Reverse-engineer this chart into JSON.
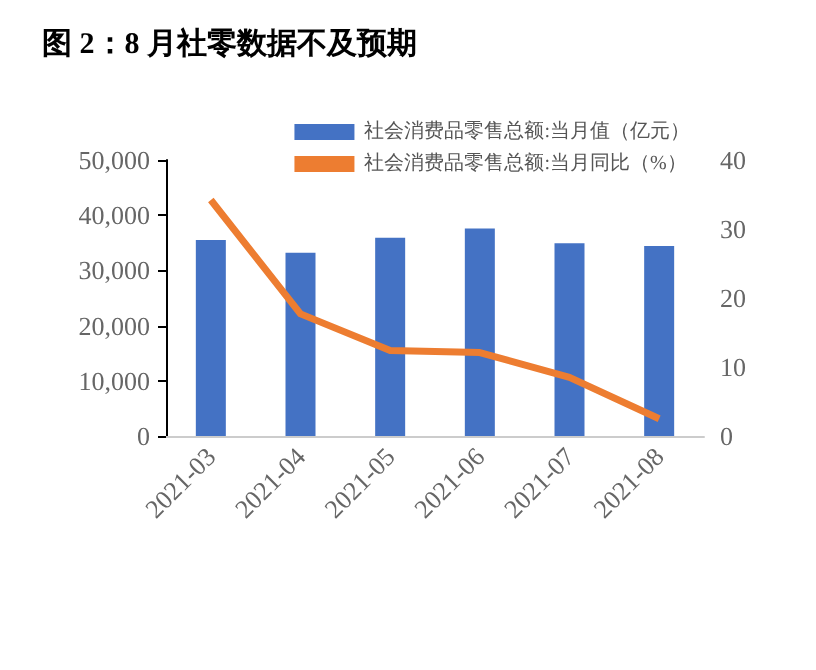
{
  "chart_data": {
    "type": "bar",
    "title": "图 2：8 月社零数据不及预期",
    "categories": [
      "2021-03",
      "2021-04",
      "2021-05",
      "2021-06",
      "2021-07",
      "2021-08"
    ],
    "series": [
      {
        "name": "社会消费品零售总额:当月值（亿元）",
        "color": "#4472c4",
        "values": [
          35500,
          33200,
          35900,
          37600,
          34900,
          34400
        ]
      },
      {
        "name": "社会消费品零售总额:当月同比（%）",
        "type": "line",
        "axis": "y2",
        "color": "#ed7d31",
        "values": [
          34.2,
          17.7,
          12.4,
          12.1,
          8.5,
          2.5
        ]
      }
    ],
    "ylim": [
      0,
      50000
    ],
    "yticks": [
      0,
      {
        "value": 10000,
        "label": "10,000"
      },
      {
        "value": 20000,
        "label": "20,000"
      },
      {
        "value": 30000,
        "label": "30,000"
      },
      {
        "value": 40000,
        "label": "40,000"
      },
      {
        "value": 50000,
        "label": "50,000"
      }
    ],
    "y2lim": [
      0,
      40
    ],
    "y2ticks": [
      0,
      10,
      20,
      30,
      40
    ],
    "grid": false,
    "legend": "top",
    "marker": "none"
  }
}
